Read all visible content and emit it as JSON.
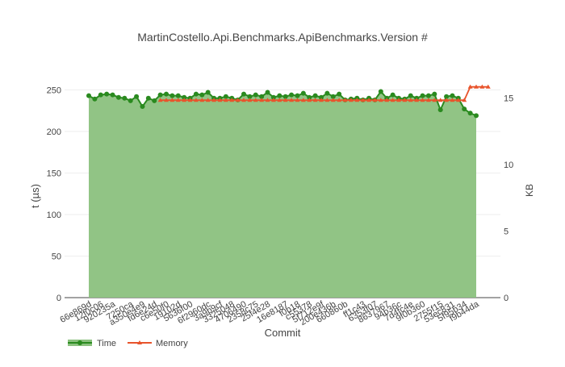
{
  "colors": {
    "time_line": "#2a8a1f",
    "time_fill": "#8bc17e",
    "memory_line": "#e8542c",
    "grid": "#eeeeee",
    "text": "#444444"
  },
  "chart_data": {
    "type": "line",
    "title": "MartinCostello.Api.Benchmarks.ApiBenchmarks.Version #",
    "xlabel": "Commit",
    "ylabel": "t (µs)",
    "y2label": "KB",
    "ylim": [
      0,
      265
    ],
    "y2lim": [
      0,
      16.56
    ],
    "yticks": [
      0,
      50,
      100,
      150,
      200,
      250
    ],
    "y2ticks": [
      0,
      5,
      10,
      15
    ],
    "grid": true,
    "legend_position": "bottom-left",
    "x_tick_labels": [
      "66e869d",
      "12f0c06",
      "920235a",
      "7250ca",
      "a350e4e9",
      "fd6e24d",
      "c6e50f0",
      "19102d",
      "5636f00",
      "6f2960dc",
      "3a9b9cf",
      "3325048",
      "4706490",
      "2358c75",
      "25f4e28",
      "16e8187",
      "f0b18",
      "c55378",
      "5f712e9f",
      "200e436b",
      "660860b",
      "ff1c43",
      "6353f07",
      "8637967",
      "94b36c",
      "7d4fc4e",
      "9f0b360",
      "2755f15",
      "53ec831",
      "5f95b34",
      "f9b44da"
    ],
    "series": [
      {
        "name": "Time",
        "axis": "left",
        "style": "area-line-markers",
        "values": [
          243,
          239,
          244,
          245,
          244,
          241,
          240,
          237,
          242,
          230,
          240,
          237,
          244,
          245,
          243,
          243,
          241,
          240,
          245,
          244,
          247,
          240,
          240,
          242,
          240,
          238,
          245,
          242,
          244,
          242,
          247,
          241,
          243,
          242,
          244,
          243,
          246,
          241,
          243,
          241,
          246,
          242,
          245,
          238,
          239,
          240,
          238,
          240,
          238,
          248,
          240,
          244,
          240,
          239,
          243,
          240,
          243,
          243,
          245,
          226,
          242,
          243,
          240,
          227,
          222,
          219
        ]
      },
      {
        "name": "Memory",
        "axis": "right",
        "style": "line-markers",
        "start_index": 12,
        "values": [
          14.85,
          14.85,
          14.85,
          14.85,
          14.85,
          14.85,
          14.85,
          14.85,
          14.85,
          14.85,
          14.85,
          14.85,
          14.85,
          14.85,
          14.85,
          14.85,
          14.85,
          14.85,
          14.85,
          14.85,
          14.85,
          14.85,
          14.85,
          14.85,
          14.85,
          14.85,
          14.85,
          14.85,
          14.85,
          14.85,
          14.85,
          14.85,
          14.85,
          14.85,
          14.85,
          14.85,
          14.85,
          14.85,
          14.85,
          14.85,
          14.85,
          14.85,
          14.85,
          14.85,
          14.85,
          14.85,
          14.85,
          14.85,
          14.85,
          14.85,
          14.85,
          14.85,
          15.85,
          15.85,
          15.85,
          15.85
        ]
      }
    ]
  }
}
